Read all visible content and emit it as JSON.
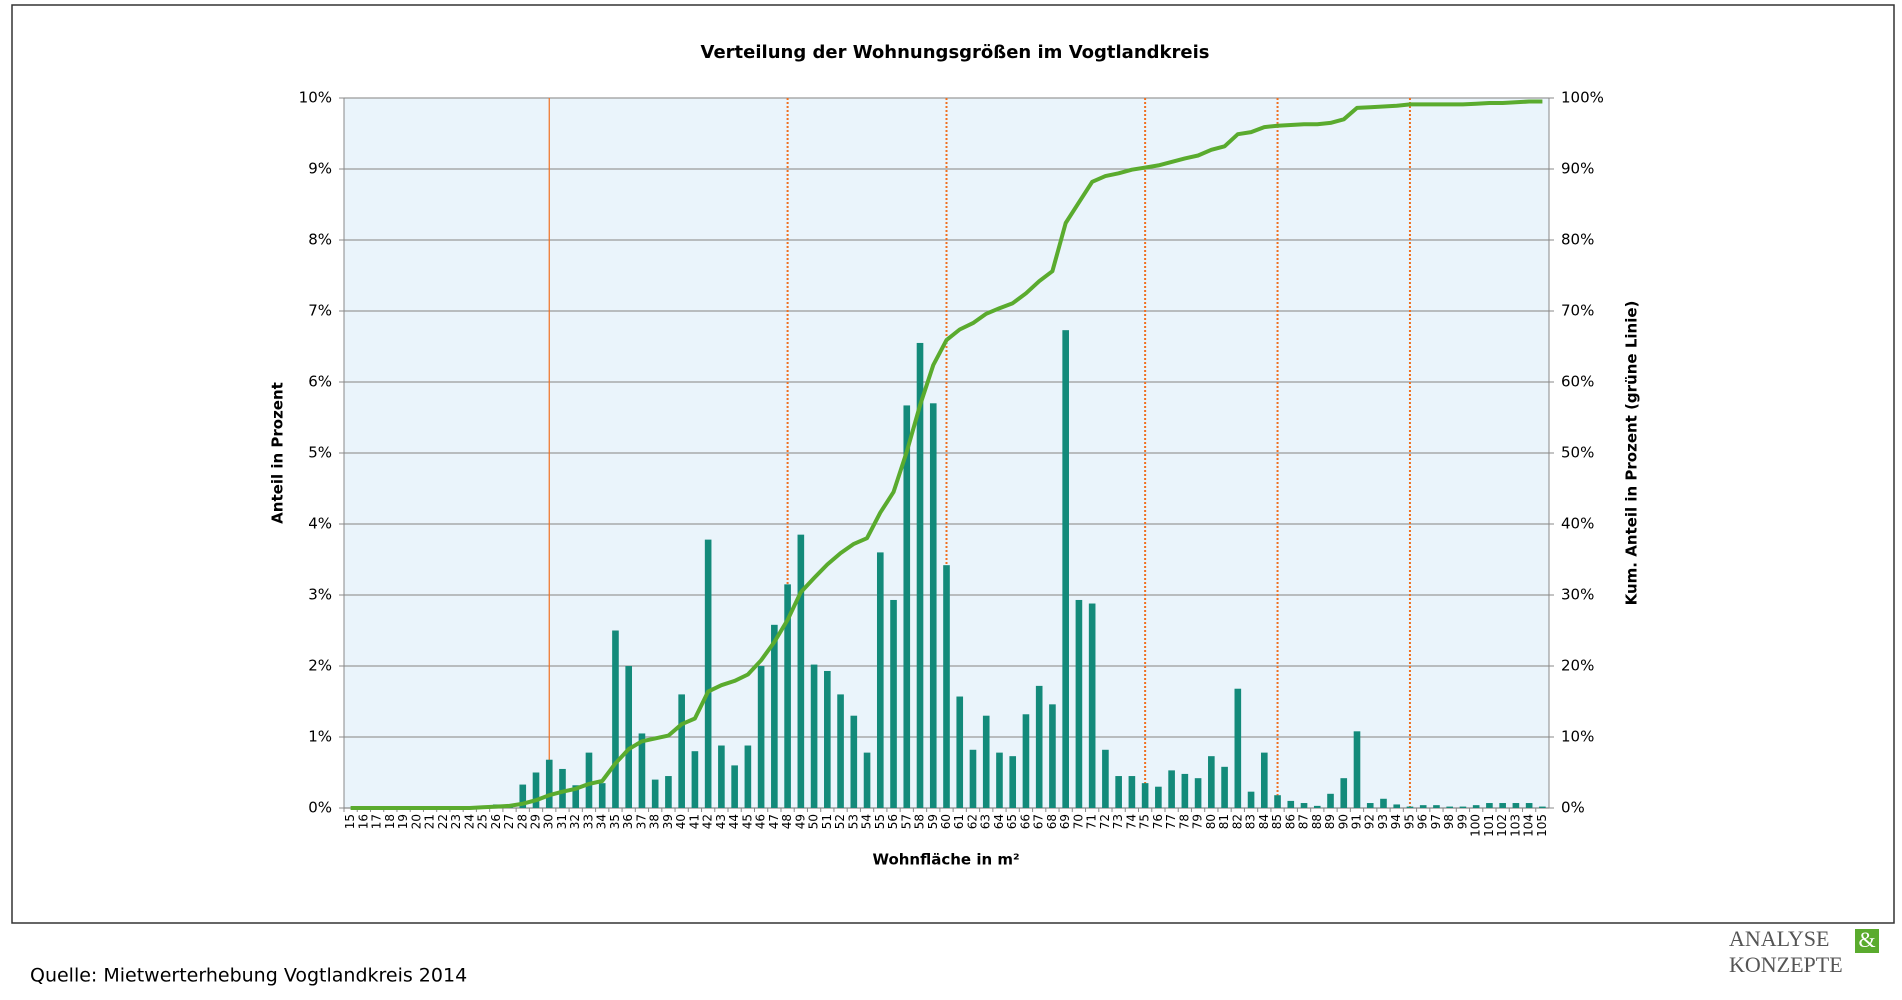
{
  "chart_data": {
    "type": "bar-line",
    "title": "Verteilung  der  Wohnungsgrößen  im  Vogtlandkreis",
    "x_label": "Wohnfläche in m²",
    "y_label": "Anteil in Prozent",
    "y2_label": "Kum. Anteil in Prozent (grüne Linie)",
    "categories": [
      "15",
      "16",
      "17",
      "18",
      "19",
      "20",
      "21",
      "22",
      "23",
      "24",
      "25",
      "26",
      "27",
      "28",
      "29",
      "30",
      "31",
      "32",
      "33",
      "34",
      "35",
      "36",
      "37",
      "38",
      "39",
      "40",
      "41",
      "42",
      "43",
      "44",
      "45",
      "46",
      "47",
      "48",
      "49",
      "50",
      "51",
      "52",
      "53",
      "54",
      "55",
      "56",
      "57",
      "58",
      "59",
      "60",
      "61",
      "62",
      "63",
      "64",
      "65",
      "66",
      "67",
      "68",
      "69",
      "70",
      "71",
      "72",
      "73",
      "74",
      "75",
      "76",
      "77",
      "78",
      "79",
      "80",
      "81",
      "82",
      "83",
      "84",
      "85",
      "86",
      "87",
      "88",
      "89",
      "90",
      "91",
      "92",
      "93",
      "94",
      "95",
      "96",
      "97",
      "98",
      "99",
      "100",
      "101",
      "102",
      "103",
      "104",
      "105"
    ],
    "series": [
      {
        "name": "Anteil",
        "type": "bar",
        "color": "#138a7a",
        "values": [
          0,
          0,
          0,
          0,
          0,
          0,
          0,
          0,
          0,
          0,
          0.03,
          0.05,
          0.05,
          0.33,
          0.5,
          0.68,
          0.55,
          0.32,
          0.78,
          0.35,
          2.5,
          2.0,
          1.05,
          0.4,
          0.45,
          1.6,
          0.8,
          3.78,
          0.88,
          0.6,
          0.88,
          2.0,
          2.58,
          3.15,
          3.85,
          2.02,
          1.93,
          1.6,
          1.3,
          0.78,
          3.6,
          2.93,
          5.67,
          6.55,
          5.7,
          3.42,
          1.57,
          0.82,
          1.3,
          0.78,
          0.73,
          1.32,
          1.72,
          1.46,
          6.73,
          2.93,
          2.88,
          0.82,
          0.45,
          0.45,
          0.35,
          0.3,
          0.53,
          0.48,
          0.42,
          0.73,
          0.58,
          1.68,
          0.23,
          0.78,
          0.18,
          0.1,
          0.07,
          0.03,
          0.2,
          0.42,
          1.08,
          0.07,
          0.13,
          0.05,
          0.02,
          0.04,
          0.04,
          0.02,
          0.02,
          0.04,
          0.07,
          0.07,
          0.07,
          0.07,
          0.02
        ]
      },
      {
        "name": "Kumuliert",
        "type": "line",
        "axis": "y2",
        "color": "#5aab2e",
        "values": [
          0,
          0,
          0,
          0,
          0,
          0,
          0,
          0,
          0,
          0,
          0.1,
          0.2,
          0.3,
          0.6,
          1.1,
          1.8,
          2.3,
          2.7,
          3.4,
          3.8,
          6.3,
          8.3,
          9.4,
          9.8,
          10.2,
          11.8,
          12.6,
          16.4,
          17.3,
          17.9,
          18.8,
          20.8,
          23.4,
          26.5,
          30.4,
          32.4,
          34.3,
          35.9,
          37.2,
          38.0,
          41.6,
          44.5,
          50.2,
          56.7,
          62.4,
          65.9,
          67.4,
          68.3,
          69.6,
          70.4,
          71.1,
          72.5,
          74.2,
          75.6,
          82.4,
          85.3,
          88.2,
          89.0,
          89.4,
          89.9,
          90.2,
          90.5,
          91.0,
          91.5,
          91.9,
          92.7,
          93.2,
          94.9,
          95.2,
          95.9,
          96.1,
          96.2,
          96.3,
          96.3,
          96.5,
          97.0,
          98.6,
          98.7,
          98.8,
          98.9,
          99.1,
          99.1,
          99.1,
          99.1,
          99.1,
          99.2,
          99.3,
          99.3,
          99.4,
          99.5,
          99.5
        ]
      }
    ],
    "ylim": [
      0,
      10
    ],
    "yticks": [
      {
        "value": 0,
        "label": "0%"
      },
      {
        "value": 1,
        "label": "1%"
      },
      {
        "value": 2,
        "label": "2%"
      },
      {
        "value": 3,
        "label": "3%"
      },
      {
        "value": 4,
        "label": "4%"
      },
      {
        "value": 5,
        "label": "5%"
      },
      {
        "value": 6,
        "label": "6%"
      },
      {
        "value": 7,
        "label": "7%"
      },
      {
        "value": 8,
        "label": "8%"
      },
      {
        "value": 9,
        "label": "9%"
      },
      {
        "value": 10,
        "label": "10%"
      }
    ],
    "y2lim": [
      0,
      100
    ],
    "y2ticks": [
      {
        "value": 0,
        "label": "0%"
      },
      {
        "value": 10,
        "label": "10%"
      },
      {
        "value": 20,
        "label": "20%"
      },
      {
        "value": 30,
        "label": "30%"
      },
      {
        "value": 40,
        "label": "40%"
      },
      {
        "value": 50,
        "label": "50%"
      },
      {
        "value": 60,
        "label": "60%"
      },
      {
        "value": 70,
        "label": "70%"
      },
      {
        "value": 80,
        "label": "80%"
      },
      {
        "value": 90,
        "label": "90%"
      },
      {
        "value": 100,
        "label": "100%"
      }
    ],
    "grid": true,
    "vlines": [
      30,
      48,
      60,
      75,
      85,
      95
    ],
    "vline_styles": [
      "solid",
      "dotted",
      "dotted",
      "dotted",
      "dotted",
      "dotted"
    ],
    "vline_color": "#f07020"
  },
  "source": "Quelle: Mietwerterhebung Vogtlandkreis 2014",
  "logo": {
    "line1": "ANALYSE",
    "ampersand": "&",
    "line2": "KONZEPTE"
  }
}
